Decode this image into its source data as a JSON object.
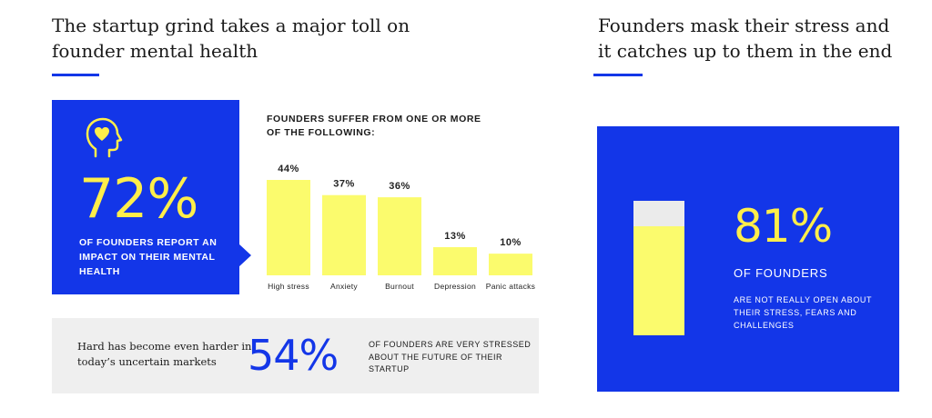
{
  "left": {
    "title": "The startup grind takes a major toll on founder mental health",
    "stat_72": {
      "icon": "head-heart-icon",
      "value": "72%",
      "text": "OF FOUNDERS REPORT AN IMPACT ON THEIR MENTAL HEALTH"
    },
    "chart_title": "FOUNDERS SUFFER FROM ONE OR MORE OF THE FOLLOWING:",
    "stat_54": {
      "context": "Hard has become even harder in today’s uncertain markets",
      "value": "54%",
      "text": "OF FOUNDERS ARE VERY STRESSED ABOUT THE FUTURE OF THEIR STARTUP"
    }
  },
  "right": {
    "title": "Founders mask their stress and it catches up to them in the end",
    "stat_81": {
      "value": "81%",
      "level_fraction": 0.81,
      "label": "OF FOUNDERS",
      "text": "ARE NOT REALLY OPEN ABOUT THEIR STRESS, FEARS AND CHALLENGES"
    }
  },
  "colors": {
    "accent_blue": "#1336e8",
    "highlight_yellow": "#ffee4a",
    "bar_yellow": "#fbfb6d",
    "card_gray": "#efefef"
  },
  "chart_data": {
    "type": "bar",
    "categories": [
      "High stress",
      "Anxiety",
      "Burnout",
      "Depression",
      "Panic attacks"
    ],
    "values": [
      44,
      37,
      36,
      13,
      10
    ],
    "value_labels": [
      "44%",
      "37%",
      "36%",
      "13%",
      "10%"
    ],
    "title": "FOUNDERS SUFFER FROM ONE OR MORE OF THE FOLLOWING:",
    "xlabel": "",
    "ylabel": "",
    "ylim": [
      0,
      44
    ],
    "grid": false,
    "legend": "none"
  }
}
